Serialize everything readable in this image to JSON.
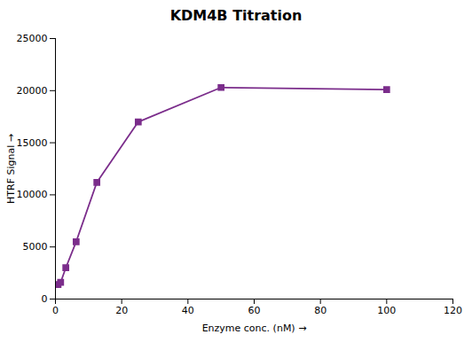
{
  "chart_data": {
    "type": "line",
    "title": "KDM4B Titration",
    "xlabel": "Enzyme conc. (nM)",
    "ylabel": "HTRF Signal",
    "x": [
      0.78,
      1.56,
      3.125,
      6.25,
      12.5,
      25,
      50,
      100
    ],
    "values": [
      1400,
      1600,
      3000,
      5500,
      11200,
      17000,
      20300,
      20100
    ],
    "color": "#7B2D8B",
    "marker": "square",
    "xlim": [
      0,
      120
    ],
    "ylim": [
      0,
      25000
    ],
    "xticks": [
      0,
      20,
      40,
      60,
      80,
      100,
      120
    ],
    "yticks": [
      0,
      5000,
      10000,
      15000,
      20000,
      25000
    ],
    "grid": false
  }
}
